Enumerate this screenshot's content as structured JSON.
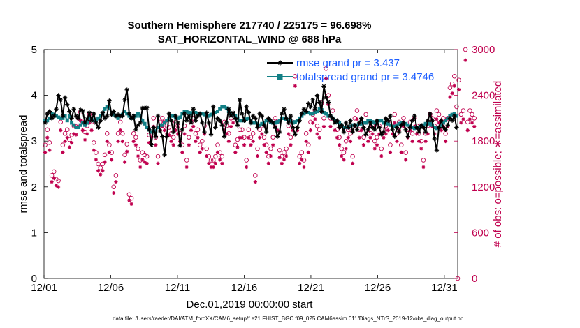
{
  "chart_data": {
    "type": "line",
    "title_line1": "Southern Hemisphere 217740 / 225175 = 96.698%",
    "title_line2": "SAT_HORIZONTAL_WIND @ 688 hPa",
    "xlabel": "Dec.01,2019 00:00:00 start",
    "ylabel": "rmse and totalspread",
    "ylabel_right": "# of obs: o=possible; ∗=assimilated",
    "footnote": "data file: /Users/raeder/DAI/ATM_forcXX/CAM6_setup/f.e21.FHIST_BGC.f09_025.CAM6assim.011/Diags_NTrS_2019-12/obs_diag_output.nc",
    "xlim": [
      0,
      31
    ],
    "ylim": [
      0,
      5
    ],
    "ylim_right": [
      0,
      3000
    ],
    "x_ticks": [
      0,
      5,
      10,
      15,
      20,
      25,
      30
    ],
    "x_tick_labels": [
      "12/01",
      "12/06",
      "12/11",
      "12/16",
      "12/21",
      "12/26",
      "12/31"
    ],
    "y_ticks": [
      0,
      1,
      2,
      3,
      4,
      5
    ],
    "y_tick_labels": [
      "0",
      "1",
      "2",
      "3",
      "4",
      "5"
    ],
    "y_right_ticks": [
      0,
      600,
      1200,
      1800,
      2400,
      3000
    ],
    "y_right_tick_labels": [
      "0",
      "600",
      "1200",
      "1800",
      "2400",
      "3000"
    ],
    "colors": {
      "rmse": "#000000",
      "spread": "#138086",
      "obs": "#c0004e",
      "legend_text": "#1a5cff"
    },
    "series": [
      {
        "name": "rmse grand pr = 3.437",
        "marker": "star",
        "values": [
          3.4,
          3.6,
          3.65,
          3.5,
          3.55,
          3.7,
          4.0,
          3.9,
          3.55,
          3.95,
          3.8,
          3.65,
          3.5,
          3.7,
          3.55,
          3.5,
          3.68,
          3.66,
          3.4,
          3.48,
          3.62,
          3.45,
          3.6,
          3.4,
          3.3,
          3.45,
          3.62,
          3.5,
          3.55,
          3.88,
          3.58,
          3.65,
          3.55,
          3.58,
          3.55,
          3.55,
          3.9,
          4.12,
          3.6,
          3.5,
          3.55,
          3.25,
          3.35,
          3.4,
          3.72,
          3.72,
          3.73,
          3.25,
          2.92,
          3.3,
          3.1,
          3.55,
          3.22,
          3.1,
          2.7,
          3.1,
          3.6,
          3.45,
          3.2,
          3.55,
          3.4,
          2.9,
          3.25,
          3.6,
          3.45,
          3.55,
          3.4,
          3.7,
          3.45,
          3.55,
          3.6,
          3.4,
          3.2,
          3.62,
          3.4,
          3.15,
          3.75,
          3.3,
          3.5,
          3.45,
          3.35,
          3.1,
          3.4,
          3.7,
          3.55,
          3.62,
          3.5,
          3.35,
          3.9,
          3.6,
          3.45,
          3.75,
          3.62,
          3.4,
          3.55,
          3.5,
          3.3,
          3.6,
          3.55,
          3.35,
          3.2,
          3.5,
          3.45,
          3.4,
          3.3,
          3.1,
          3.2,
          3.6,
          3.7,
          3.5,
          3.4,
          3.55,
          3.3,
          3.15,
          3.3,
          3.45,
          3.6,
          3.7,
          3.65,
          3.82,
          3.75,
          3.9,
          3.7,
          4.0,
          3.85,
          3.65,
          4.2,
          3.95,
          3.85,
          3.55,
          3.5,
          3.4,
          3.45,
          3.3,
          3.35,
          3.2,
          3.4,
          3.3,
          3.45,
          3.2,
          3.35,
          3.25,
          3.4,
          3.5,
          3.3,
          3.15,
          3.25,
          3.4,
          3.3,
          3.25,
          3.45,
          3.3,
          3.15,
          3.2,
          3.5,
          3.45,
          3.55,
          3.25,
          3.1,
          3.3,
          3.2,
          3.35,
          3.4,
          3.25,
          3.1,
          3.3,
          3.45,
          3.55,
          3.3,
          3.2,
          3.35,
          3.3,
          3.2,
          3.45,
          3.6,
          3.45,
          3.05,
          2.8,
          3.3,
          3.45,
          3.3,
          3.25,
          3.35,
          3.5,
          3.45,
          3.55,
          3.3
        ]
      },
      {
        "name": "totalspread grand pr = 3.4746",
        "marker": "square",
        "values": [
          3.45,
          3.45,
          3.5,
          3.6,
          3.58,
          3.55,
          3.52,
          3.5,
          3.5,
          3.55,
          3.45,
          3.55,
          3.4,
          3.35,
          3.3,
          3.3,
          3.35,
          3.4,
          3.35,
          3.4,
          3.5,
          3.5,
          3.45,
          3.45,
          3.5,
          3.55,
          3.6,
          3.7,
          3.75,
          3.72,
          3.6,
          3.58,
          3.55,
          3.5,
          3.55,
          3.58,
          3.65,
          3.6,
          3.55,
          3.5,
          3.52,
          3.55,
          3.6,
          3.55,
          3.45,
          3.38,
          3.3,
          3.25,
          3.2,
          3.22,
          3.22,
          3.3,
          3.35,
          3.35,
          3.4,
          3.45,
          3.5,
          3.55,
          3.55,
          3.52,
          3.5,
          3.52,
          3.6,
          3.65,
          3.65,
          3.62,
          3.6,
          3.62,
          3.62,
          3.6,
          3.6,
          3.6,
          3.58,
          3.55,
          3.55,
          3.58,
          3.6,
          3.62,
          3.65,
          3.7,
          3.75,
          3.75,
          3.72,
          3.65,
          3.6,
          3.58,
          3.55,
          3.5,
          3.45,
          3.45,
          3.45,
          3.48,
          3.5,
          3.45,
          3.4,
          3.4,
          3.38,
          3.35,
          3.38,
          3.4,
          3.45,
          3.45,
          3.42,
          3.4,
          3.4,
          3.42,
          3.45,
          3.5,
          3.5,
          3.48,
          3.45,
          3.45,
          3.4,
          3.42,
          3.45,
          3.5,
          3.55,
          3.6,
          3.62,
          3.62,
          3.6,
          3.6,
          3.62,
          3.65,
          3.7,
          3.68,
          3.62,
          3.6,
          3.55,
          3.55,
          3.5,
          3.45,
          3.42,
          3.4,
          3.35,
          3.3,
          3.3,
          3.3,
          3.32,
          3.35,
          3.35,
          3.35,
          3.38,
          3.38,
          3.4,
          3.4,
          3.45,
          3.45,
          3.42,
          3.4,
          3.42,
          3.45,
          3.45,
          3.4,
          3.4,
          3.38,
          3.35,
          3.32,
          3.32,
          3.35,
          3.38,
          3.4,
          3.4,
          3.38,
          3.35,
          3.32,
          3.3,
          3.28,
          3.3,
          3.3,
          3.32,
          3.35,
          3.38,
          3.4,
          3.38,
          3.35,
          3.3,
          3.28,
          3.3,
          3.35,
          3.4,
          3.45,
          3.5,
          3.55,
          3.58,
          3.6,
          3.55
        ]
      }
    ],
    "obs_possible": [
      1750,
      1950,
      1780,
      1350,
      1400,
      1300,
      1280,
      2050,
      1750,
      1900,
      1950,
      1820,
      1880,
      2000,
      1990,
      2100,
      2180,
      2050,
      1920,
      2000,
      2150,
      2050,
      1780,
      1650,
      1500,
      1450,
      1500,
      1620,
      1900,
      1750,
      1650,
      1200,
      1350,
      1900,
      2050,
      1900,
      1620,
      1760,
      1100,
      1050,
      1900,
      1850,
      1700,
      1550,
      1650,
      1620,
      1600,
      1880,
      1950,
      2100,
      1850,
      1600,
      2050,
      2100,
      2050,
      2000,
      1980,
      1900,
      1850,
      2050,
      2000,
      1900,
      1750,
      2000,
      1550,
      1850,
      2050,
      2100,
      1900,
      1950,
      1750,
      1800,
      2000,
      1700,
      1600,
      1550,
      1550,
      1600,
      1750,
      1650,
      1600,
      2050,
      2000,
      1900,
      2100,
      2150,
      1750,
      1820,
      1950,
      1950,
      1850,
      1550,
      1950,
      1850,
      1900,
      1350,
      1700,
      1950,
      2000,
      1850,
      1750,
      1600,
      1700,
      1850,
      2100,
      2050,
      1680,
      1600,
      1650,
      1700,
      2000,
      1850,
      2050,
      2650,
      2050,
      1600,
      1650,
      1550,
      1900,
      1750,
      2050,
      2150,
      2200,
      2000,
      1950,
      2300,
      2100,
      2750,
      2400,
      2100,
      2200,
      2050,
      1950,
      1850,
      1700,
      1650,
      1800,
      1950,
      1900,
      1600,
      2100,
      2200,
      1950,
      2050,
      1850,
      2150,
      1900,
      1950,
      2000,
      1800,
      1850,
      2000,
      1700,
      1950,
      2000,
      2050,
      1750,
      2000,
      2150,
      1900,
      2050,
      1750,
      2100,
      1650,
      1950,
      2050,
      1900,
      2100,
      2000,
      1900,
      1800,
      1550,
      1900,
      2000,
      2150,
      2100,
      2000,
      2200,
      2150,
      2050,
      2100,
      1900,
      2100,
      2500,
      2550,
      2650,
      2250,
      2600,
      2150,
      2200,
      3000,
      2050,
      2200,
      2150,
      2100
    ]
  }
}
